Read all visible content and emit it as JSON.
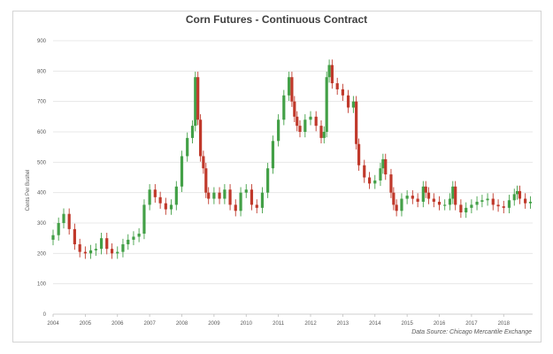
{
  "chart_data": {
    "type": "candlestick",
    "title": "Corn Futures - Continuous Contract",
    "ylabel": "Cents Per Bushel",
    "xlabel": "",
    "source": "Data Source: Chicago Mercantile Exchange",
    "ylim": [
      0,
      900
    ],
    "y_ticks": [
      0,
      100,
      200,
      300,
      400,
      500,
      600,
      700,
      800,
      900
    ],
    "xlim": [
      2004,
      2018.9
    ],
    "x_ticks": [
      "2004",
      "2005",
      "2006",
      "2007",
      "2008",
      "2009",
      "2010",
      "2011",
      "2012",
      "2013",
      "2014",
      "2015",
      "2016",
      "2017",
      "2018"
    ],
    "grid": true,
    "up_color": "#43a047",
    "down_color": "#c0392b",
    "series": [
      {
        "values": [
          [
            2004.0,
            260
          ],
          [
            2004.17,
            300
          ],
          [
            2004.33,
            330
          ],
          [
            2004.5,
            280
          ],
          [
            2004.67,
            230
          ],
          [
            2004.83,
            205
          ],
          [
            2005.0,
            200
          ],
          [
            2005.17,
            210
          ],
          [
            2005.33,
            215
          ],
          [
            2005.5,
            250
          ],
          [
            2005.67,
            215
          ],
          [
            2005.83,
            200
          ],
          [
            2006.0,
            205
          ],
          [
            2006.17,
            230
          ],
          [
            2006.33,
            245
          ],
          [
            2006.5,
            255
          ],
          [
            2006.67,
            265
          ],
          [
            2006.83,
            360
          ],
          [
            2007.0,
            410
          ],
          [
            2007.17,
            385
          ],
          [
            2007.33,
            365
          ],
          [
            2007.5,
            345
          ],
          [
            2007.67,
            360
          ],
          [
            2007.83,
            420
          ],
          [
            2008.0,
            520
          ],
          [
            2008.17,
            580
          ],
          [
            2008.33,
            620
          ],
          [
            2008.42,
            780
          ],
          [
            2008.5,
            640
          ],
          [
            2008.58,
            520
          ],
          [
            2008.67,
            480
          ],
          [
            2008.75,
            400
          ],
          [
            2008.83,
            380
          ],
          [
            2009.0,
            400
          ],
          [
            2009.17,
            380
          ],
          [
            2009.33,
            410
          ],
          [
            2009.5,
            360
          ],
          [
            2009.67,
            340
          ],
          [
            2009.83,
            400
          ],
          [
            2010.0,
            410
          ],
          [
            2010.17,
            360
          ],
          [
            2010.33,
            350
          ],
          [
            2010.5,
            400
          ],
          [
            2010.67,
            480
          ],
          [
            2010.83,
            570
          ],
          [
            2011.0,
            640
          ],
          [
            2011.17,
            720
          ],
          [
            2011.33,
            780
          ],
          [
            2011.42,
            700
          ],
          [
            2011.5,
            650
          ],
          [
            2011.58,
            620
          ],
          [
            2011.67,
            600
          ],
          [
            2011.83,
            640
          ],
          [
            2012.0,
            650
          ],
          [
            2012.17,
            620
          ],
          [
            2012.33,
            580
          ],
          [
            2012.42,
            600
          ],
          [
            2012.5,
            780
          ],
          [
            2012.58,
            820
          ],
          [
            2012.67,
            760
          ],
          [
            2012.83,
            740
          ],
          [
            2013.0,
            720
          ],
          [
            2013.17,
            680
          ],
          [
            2013.33,
            700
          ],
          [
            2013.42,
            560
          ],
          [
            2013.5,
            490
          ],
          [
            2013.67,
            450
          ],
          [
            2013.83,
            430
          ],
          [
            2014.0,
            440
          ],
          [
            2014.17,
            480
          ],
          [
            2014.25,
            510
          ],
          [
            2014.33,
            460
          ],
          [
            2014.5,
            400
          ],
          [
            2014.58,
            360
          ],
          [
            2014.67,
            340
          ],
          [
            2014.83,
            380
          ],
          [
            2015.0,
            390
          ],
          [
            2015.17,
            380
          ],
          [
            2015.33,
            370
          ],
          [
            2015.5,
            420
          ],
          [
            2015.58,
            400
          ],
          [
            2015.67,
            380
          ],
          [
            2015.83,
            370
          ],
          [
            2016.0,
            360
          ],
          [
            2016.17,
            360
          ],
          [
            2016.33,
            380
          ],
          [
            2016.42,
            420
          ],
          [
            2016.5,
            360
          ],
          [
            2016.67,
            335
          ],
          [
            2016.83,
            350
          ],
          [
            2017.0,
            360
          ],
          [
            2017.17,
            370
          ],
          [
            2017.33,
            375
          ],
          [
            2017.5,
            380
          ],
          [
            2017.67,
            360
          ],
          [
            2017.83,
            355
          ],
          [
            2018.0,
            350
          ],
          [
            2018.17,
            375
          ],
          [
            2018.33,
            395
          ],
          [
            2018.42,
            405
          ],
          [
            2018.5,
            380
          ],
          [
            2018.67,
            365
          ],
          [
            2018.83,
            370
          ]
        ]
      }
    ]
  }
}
